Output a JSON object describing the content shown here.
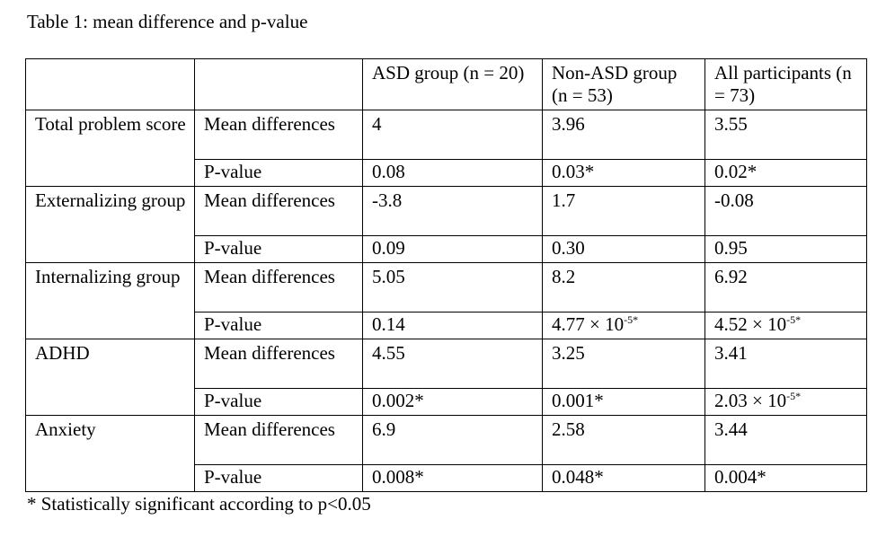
{
  "caption": "Table 1: mean difference and p-value",
  "table": {
    "columns": [
      "",
      "",
      "ASD group (n = 20)",
      "Non-ASD group (n = 53)",
      "All participants (n = 73)"
    ],
    "rows": [
      {
        "measure": "Total problem score",
        "mean_label": "Mean differences",
        "mean": [
          "4",
          "3.96",
          "3.55"
        ],
        "p_label": "P-value",
        "p": [
          "0.08",
          "0.03*",
          "0.02*"
        ]
      },
      {
        "measure": "Externalizing group",
        "mean_label": "Mean differences",
        "mean": [
          "-3.8",
          "1.7",
          "-0.08"
        ],
        "p_label": "P-value",
        "p": [
          "0.09",
          "0.30",
          "0.95"
        ]
      },
      {
        "measure": "Internalizing group",
        "mean_label": "Mean differences",
        "mean": [
          "5.05",
          "8.2",
          "6.92"
        ],
        "p_label": "P-value",
        "p": [
          "0.14",
          "4.77 × 10-5*",
          "4.52 × 10-5*"
        ]
      },
      {
        "measure": "ADHD",
        "mean_label": "Mean differences",
        "mean": [
          "4.55",
          "3.25",
          "3.41"
        ],
        "p_label": "P-value",
        "p": [
          "0.002*",
          "0.001*",
          "2.03 × 10-5*"
        ]
      },
      {
        "measure": "Anxiety",
        "mean_label": "Mean differences",
        "mean": [
          "6.9",
          "2.58",
          "3.44"
        ],
        "p_label": "P-value",
        "p": [
          "0.008*",
          "0.048*",
          "0.004*"
        ]
      }
    ]
  },
  "footnote": "* Statistically significant according to p<0.05"
}
